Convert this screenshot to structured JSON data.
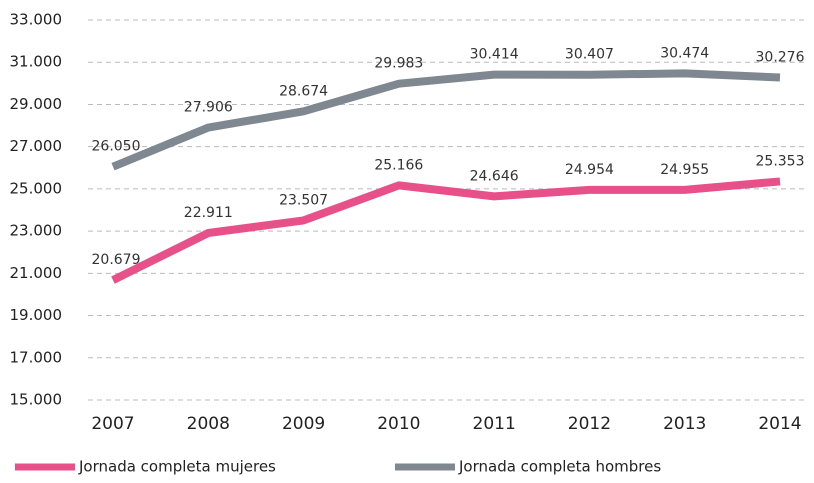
{
  "chart_data": {
    "type": "line",
    "categories": [
      "2007",
      "2008",
      "2009",
      "2010",
      "2011",
      "2012",
      "2013",
      "2014"
    ],
    "series": [
      {
        "name": "Jornada completa mujeres",
        "color": "#e8508a",
        "values": [
          20679,
          22911,
          23507,
          25166,
          24646,
          24954,
          24955,
          25353
        ],
        "value_labels": [
          "20.679",
          "22.911",
          "23.507",
          "25.166",
          "24.646",
          "24.954",
          "24.955",
          "25.353"
        ]
      },
      {
        "name": "Jornada completa hombres",
        "color": "#7f8891",
        "values": [
          26050,
          27906,
          28674,
          29983,
          30414,
          30407,
          30474,
          30276
        ],
        "value_labels": [
          "26.050",
          "27.906",
          "28.674",
          "29.983",
          "30.414",
          "30.407",
          "30.474",
          "30.276"
        ]
      }
    ],
    "ylim": [
      15000,
      33000
    ],
    "yticks": [
      {
        "value": 15000,
        "label": "15.000"
      },
      {
        "value": 17000,
        "label": "17.000"
      },
      {
        "value": 19000,
        "label": "19.000"
      },
      {
        "value": 21000,
        "label": "21.000"
      },
      {
        "value": 23000,
        "label": "23.000"
      },
      {
        "value": 25000,
        "label": "25.000"
      },
      {
        "value": 27000,
        "label": "27.000"
      },
      {
        "value": 29000,
        "label": "29.000"
      },
      {
        "value": 31000,
        "label": "31.000"
      },
      {
        "value": 33000,
        "label": "33.000"
      }
    ],
    "grid": true,
    "legend": "bottom"
  }
}
